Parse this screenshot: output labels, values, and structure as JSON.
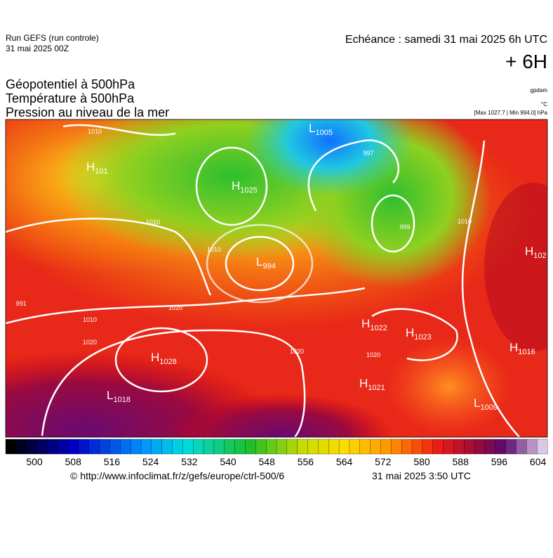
{
  "header": {
    "run": "Run GEFS (run controle)",
    "run_date": "31 mai 2025 00Z",
    "echeance": "Echéance : samedi 31 mai 2025 6h UTC",
    "lead": "+ 6H",
    "titles": [
      "Géopotentiel à 500hPa",
      "Température à 500hPa",
      "Pression au niveau de la mer"
    ],
    "units": [
      "gpdam",
      "°C",
      "[Max 1027.7 | Min 994.0] hPa"
    ]
  },
  "map": {
    "centers": [
      {
        "letter": "L",
        "value": "1005"
      },
      {
        "letter": "H",
        "value": "101"
      },
      {
        "letter": "H",
        "value": "1025"
      },
      {
        "letter": "L",
        "value": "994"
      },
      {
        "letter": "H",
        "value": "102"
      },
      {
        "letter": "H",
        "value": "1022"
      },
      {
        "letter": "H",
        "value": "1023"
      },
      {
        "letter": "H",
        "value": "1016"
      },
      {
        "letter": "H",
        "value": "1028"
      },
      {
        "letter": "H",
        "value": "1021"
      },
      {
        "letter": "L",
        "value": "1018"
      },
      {
        "letter": "L",
        "value": "1009"
      }
    ],
    "isobar_labels": [
      "1010",
      "1010",
      "1010",
      "1010",
      "1020",
      "1020",
      "1020",
      "1020",
      "991",
      "997",
      "999",
      "1010"
    ]
  },
  "colorbar": {
    "ticks": [
      "500",
      "508",
      "516",
      "524",
      "532",
      "540",
      "548",
      "556",
      "564",
      "572",
      "580",
      "588",
      "596",
      "604"
    ]
  },
  "footer": {
    "url": "© http://www.infoclimat.fr/z/gefs/europe/ctrl-500/6",
    "time": "31 mai 2025  3:50 UTC"
  }
}
